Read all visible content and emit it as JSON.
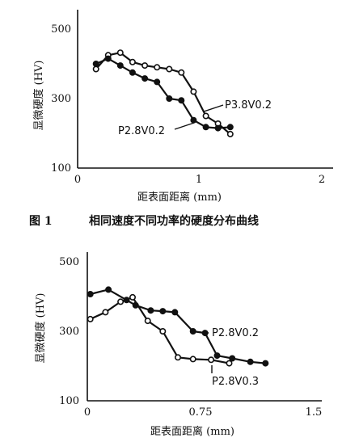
{
  "chart_data": [
    {
      "type": "line",
      "ylabel": "显微硬度 (HV)",
      "xlabel": "距表面距离 (mm)",
      "xlim": [
        0,
        2
      ],
      "ylim": [
        100,
        500
      ],
      "xticks": [
        "0",
        "1",
        "2"
      ],
      "yticks": [
        "100",
        "300",
        "500"
      ],
      "caption_num": "图 1",
      "caption_text": "相同速度不同功率的硬度分布曲线",
      "series": [
        {
          "name": "P3.8V0.2",
          "marker": "open",
          "x": [
            0.15,
            0.25,
            0.35,
            0.45,
            0.55,
            0.65,
            0.75,
            0.85,
            0.95,
            1.05,
            1.15,
            1.25
          ],
          "y": [
            385,
            425,
            432,
            405,
            395,
            390,
            385,
            375,
            320,
            250,
            228,
            198
          ]
        },
        {
          "name": "P2.8V0.2",
          "marker": "filled",
          "x": [
            0.15,
            0.25,
            0.35,
            0.45,
            0.55,
            0.65,
            0.75,
            0.85,
            0.95,
            1.05,
            1.15,
            1.25
          ],
          "y": [
            400,
            415,
            395,
            375,
            358,
            348,
            300,
            295,
            238,
            218,
            215,
            218
          ]
        }
      ]
    },
    {
      "type": "line",
      "ylabel": "显微硬度 (HV)",
      "xlabel": "距表面距离 (mm)",
      "xlim": [
        0,
        1.5
      ],
      "ylim": [
        100,
        500
      ],
      "xticks": [
        "0",
        "0.75",
        "1.5"
      ],
      "yticks": [
        "100",
        "300",
        "500"
      ],
      "series": [
        {
          "name": "P2.8V0.2",
          "marker": "filled",
          "x": [
            0.02,
            0.14,
            0.26,
            0.32,
            0.42,
            0.5,
            0.58,
            0.7,
            0.78,
            0.86,
            0.96,
            1.08,
            1.18
          ],
          "y": [
            407,
            420,
            390,
            375,
            360,
            358,
            355,
            300,
            295,
            230,
            222,
            212,
            208
          ]
        },
        {
          "name": "P2.8V0.3",
          "marker": "open",
          "x": [
            0.02,
            0.12,
            0.22,
            0.3,
            0.4,
            0.5,
            0.6,
            0.7,
            0.82,
            0.94
          ],
          "y": [
            335,
            355,
            385,
            398,
            330,
            300,
            225,
            220,
            218,
            208
          ]
        }
      ]
    }
  ]
}
